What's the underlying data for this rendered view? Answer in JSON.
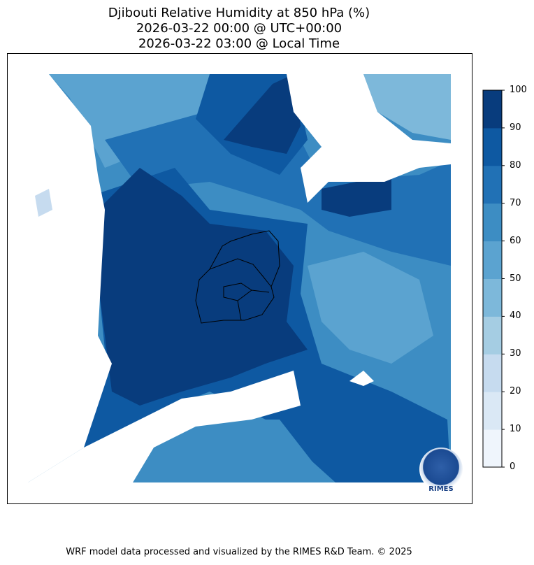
{
  "title": {
    "line1": "Djibouti Relative Humidity at 850 hPa (%)",
    "line2": "2026-03-22 00:00 @ UTC+00:00",
    "line3": "2026-03-22 03:00 @ Local Time"
  },
  "colorbar": {
    "ticks": [
      "0",
      "10",
      "20",
      "30",
      "40",
      "50",
      "60",
      "70",
      "80",
      "90",
      "100"
    ],
    "colors": [
      "#eff5fc",
      "#dae8f5",
      "#c6dbef",
      "#a5cde3",
      "#7db8da",
      "#5ba3d0",
      "#3d8dc3",
      "#2171b5",
      "#0e59a2",
      "#083c7d"
    ],
    "colormap": "Blues"
  },
  "logo": {
    "text": "RIMES"
  },
  "footer": "WRF model data processed and visualized by the RIMES R&D Team. © 2025"
}
